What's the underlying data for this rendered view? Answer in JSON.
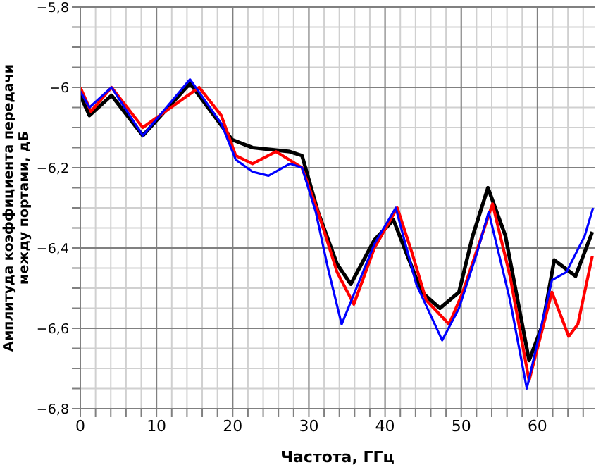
{
  "chart_data": {
    "type": "line",
    "xlabel": "Частота, ГГц",
    "ylabel": "Амплитуда коэффициента передачи между портами, дБ",
    "xlim": [
      0,
      67.5
    ],
    "ylim": [
      -6.8,
      -5.8
    ],
    "xticks": [
      0,
      {
        "value": 2,
        "label": null
      },
      {
        "value": 4,
        "label": null
      },
      {
        "value": 6,
        "label": null
      },
      {
        "value": 8,
        "label": null
      },
      10,
      {
        "value": 12,
        "label": null
      },
      {
        "value": 14,
        "label": null
      },
      {
        "value": 16,
        "label": null
      },
      {
        "value": 18,
        "label": null
      },
      20,
      {
        "value": 22,
        "label": null
      },
      {
        "value": 24,
        "label": null
      },
      {
        "value": 26,
        "label": null
      },
      {
        "value": 28,
        "label": null
      },
      30,
      {
        "value": 32,
        "label": null
      },
      {
        "value": 34,
        "label": null
      },
      {
        "value": 36,
        "label": null
      },
      {
        "value": 38,
        "label": null
      },
      40,
      {
        "value": 42,
        "label": null
      },
      {
        "value": 44,
        "label": null
      },
      {
        "value": 46,
        "label": null
      },
      {
        "value": 48,
        "label": null
      },
      50,
      {
        "value": 52,
        "label": null
      },
      {
        "value": 54,
        "label": null
      },
      {
        "value": 56,
        "label": null
      },
      {
        "value": 58,
        "label": null
      },
      60,
      {
        "value": 62,
        "label": null
      },
      {
        "value": 64,
        "label": null
      },
      {
        "value": 66,
        "label": null
      }
    ],
    "yticks": [
      {
        "value": -6.8,
        "label": "−6,8"
      },
      {
        "value": -6.75,
        "label": null
      },
      {
        "value": -6.7,
        "label": null
      },
      {
        "value": -6.65,
        "label": null
      },
      {
        "value": -6.6,
        "label": "−6,6"
      },
      {
        "value": -6.55,
        "label": null
      },
      {
        "value": -6.5,
        "label": null
      },
      {
        "value": -6.45,
        "label": null
      },
      {
        "value": -6.4,
        "label": "−6,4"
      },
      {
        "value": -6.35,
        "label": null
      },
      {
        "value": -6.3,
        "label": null
      },
      {
        "value": -6.25,
        "label": null
      },
      {
        "value": -6.2,
        "label": "−6,2"
      },
      {
        "value": -6.15,
        "label": null
      },
      {
        "value": -6.1,
        "label": null
      },
      {
        "value": -6.05,
        "label": null
      },
      {
        "value": -6,
        "label": "−6"
      },
      {
        "value": -5.95,
        "label": null
      },
      {
        "value": -5.9,
        "label": null
      },
      {
        "value": -5.85,
        "label": null
      },
      {
        "value": -5.8,
        "label": "−5,8"
      }
    ],
    "grid": true,
    "marker": "none",
    "line_style": "solid",
    "series": [
      {
        "color": "#000000",
        "x": [
          0,
          1.2,
          4.1,
          8.2,
          14.4,
          19.9,
          22.6,
          27.5,
          29.1,
          31.2,
          33.7,
          35.5,
          38.6,
          41.1,
          44.8,
          47.2,
          49.7,
          51.5,
          53.5,
          55.8,
          58.9,
          60.7,
          62.2,
          65.0,
          67.2
        ],
        "values": [
          -6.02,
          -6.07,
          -6.02,
          -6.12,
          -5.99,
          -6.13,
          -6.15,
          -6.16,
          -6.17,
          -6.31,
          -6.44,
          -6.49,
          -6.38,
          -6.33,
          -6.51,
          -6.55,
          -6.51,
          -6.37,
          -6.25,
          -6.37,
          -6.68,
          -6.59,
          -6.43,
          -6.47,
          -6.36
        ]
      },
      {
        "color": "#ff0000",
        "x": [
          0,
          1.4,
          4.1,
          8.2,
          15.6,
          18.5,
          20.4,
          22.6,
          25.7,
          29.1,
          31.2,
          33.7,
          35.9,
          38.6,
          41.6,
          43.5,
          45.4,
          48.4,
          50.2,
          54.1,
          56.4,
          58.9,
          61.9,
          64.1,
          65.3,
          67.2
        ],
        "values": [
          -6.0,
          -6.06,
          -6.0,
          -6.1,
          -6.0,
          -6.07,
          -6.17,
          -6.19,
          -6.16,
          -6.2,
          -6.31,
          -6.46,
          -6.54,
          -6.4,
          -6.3,
          -6.41,
          -6.53,
          -6.59,
          -6.51,
          -6.29,
          -6.47,
          -6.73,
          -6.51,
          -6.62,
          -6.59,
          -6.42
        ]
      },
      {
        "color": "#0000ff",
        "x": [
          0,
          1.2,
          4.1,
          8.2,
          14.4,
          18.5,
          20.4,
          22.6,
          24.7,
          27.5,
          29.1,
          30.9,
          32.5,
          34.3,
          38.6,
          41.4,
          44.1,
          47.5,
          49.7,
          52.1,
          53.6,
          56.4,
          58.6,
          61.9,
          63.8,
          66.2,
          67.3
        ],
        "values": [
          -6.01,
          -6.05,
          -6.0,
          -6.12,
          -5.98,
          -6.09,
          -6.18,
          -6.21,
          -6.22,
          -6.19,
          -6.2,
          -6.31,
          -6.45,
          -6.59,
          -6.39,
          -6.3,
          -6.49,
          -6.63,
          -6.55,
          -6.41,
          -6.31,
          -6.53,
          -6.75,
          -6.48,
          -6.46,
          -6.37,
          -6.3
        ]
      }
    ]
  }
}
